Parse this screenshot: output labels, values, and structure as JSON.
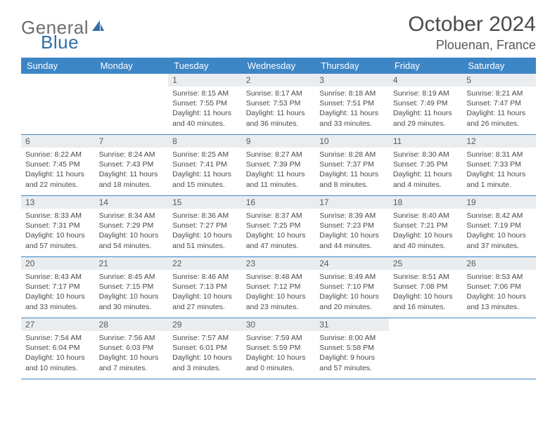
{
  "logo": {
    "general": "General",
    "blue": "Blue"
  },
  "title": "October 2024",
  "location": "Plouenan, France",
  "colors": {
    "header_bg": "#3d86c6",
    "header_fg": "#ffffff",
    "daynum_bg": "#e9edf0",
    "row_border": "#3d86c6",
    "logo_blue": "#2f6fa7",
    "logo_gray": "#6d6d6d"
  },
  "daysOfWeek": [
    "Sunday",
    "Monday",
    "Tuesday",
    "Wednesday",
    "Thursday",
    "Friday",
    "Saturday"
  ],
  "weeks": [
    [
      null,
      null,
      {
        "n": "1",
        "sr": "8:15 AM",
        "ss": "7:55 PM",
        "dl": "11 hours and 40 minutes."
      },
      {
        "n": "2",
        "sr": "8:17 AM",
        "ss": "7:53 PM",
        "dl": "11 hours and 36 minutes."
      },
      {
        "n": "3",
        "sr": "8:18 AM",
        "ss": "7:51 PM",
        "dl": "11 hours and 33 minutes."
      },
      {
        "n": "4",
        "sr": "8:19 AM",
        "ss": "7:49 PM",
        "dl": "11 hours and 29 minutes."
      },
      {
        "n": "5",
        "sr": "8:21 AM",
        "ss": "7:47 PM",
        "dl": "11 hours and 26 minutes."
      }
    ],
    [
      {
        "n": "6",
        "sr": "8:22 AM",
        "ss": "7:45 PM",
        "dl": "11 hours and 22 minutes."
      },
      {
        "n": "7",
        "sr": "8:24 AM",
        "ss": "7:43 PM",
        "dl": "11 hours and 18 minutes."
      },
      {
        "n": "8",
        "sr": "8:25 AM",
        "ss": "7:41 PM",
        "dl": "11 hours and 15 minutes."
      },
      {
        "n": "9",
        "sr": "8:27 AM",
        "ss": "7:39 PM",
        "dl": "11 hours and 11 minutes."
      },
      {
        "n": "10",
        "sr": "8:28 AM",
        "ss": "7:37 PM",
        "dl": "11 hours and 8 minutes."
      },
      {
        "n": "11",
        "sr": "8:30 AM",
        "ss": "7:35 PM",
        "dl": "11 hours and 4 minutes."
      },
      {
        "n": "12",
        "sr": "8:31 AM",
        "ss": "7:33 PM",
        "dl": "11 hours and 1 minute."
      }
    ],
    [
      {
        "n": "13",
        "sr": "8:33 AM",
        "ss": "7:31 PM",
        "dl": "10 hours and 57 minutes."
      },
      {
        "n": "14",
        "sr": "8:34 AM",
        "ss": "7:29 PM",
        "dl": "10 hours and 54 minutes."
      },
      {
        "n": "15",
        "sr": "8:36 AM",
        "ss": "7:27 PM",
        "dl": "10 hours and 51 minutes."
      },
      {
        "n": "16",
        "sr": "8:37 AM",
        "ss": "7:25 PM",
        "dl": "10 hours and 47 minutes."
      },
      {
        "n": "17",
        "sr": "8:39 AM",
        "ss": "7:23 PM",
        "dl": "10 hours and 44 minutes."
      },
      {
        "n": "18",
        "sr": "8:40 AM",
        "ss": "7:21 PM",
        "dl": "10 hours and 40 minutes."
      },
      {
        "n": "19",
        "sr": "8:42 AM",
        "ss": "7:19 PM",
        "dl": "10 hours and 37 minutes."
      }
    ],
    [
      {
        "n": "20",
        "sr": "8:43 AM",
        "ss": "7:17 PM",
        "dl": "10 hours and 33 minutes."
      },
      {
        "n": "21",
        "sr": "8:45 AM",
        "ss": "7:15 PM",
        "dl": "10 hours and 30 minutes."
      },
      {
        "n": "22",
        "sr": "8:46 AM",
        "ss": "7:13 PM",
        "dl": "10 hours and 27 minutes."
      },
      {
        "n": "23",
        "sr": "8:48 AM",
        "ss": "7:12 PM",
        "dl": "10 hours and 23 minutes."
      },
      {
        "n": "24",
        "sr": "8:49 AM",
        "ss": "7:10 PM",
        "dl": "10 hours and 20 minutes."
      },
      {
        "n": "25",
        "sr": "8:51 AM",
        "ss": "7:08 PM",
        "dl": "10 hours and 16 minutes."
      },
      {
        "n": "26",
        "sr": "8:53 AM",
        "ss": "7:06 PM",
        "dl": "10 hours and 13 minutes."
      }
    ],
    [
      {
        "n": "27",
        "sr": "7:54 AM",
        "ss": "6:04 PM",
        "dl": "10 hours and 10 minutes."
      },
      {
        "n": "28",
        "sr": "7:56 AM",
        "ss": "6:03 PM",
        "dl": "10 hours and 7 minutes."
      },
      {
        "n": "29",
        "sr": "7:57 AM",
        "ss": "6:01 PM",
        "dl": "10 hours and 3 minutes."
      },
      {
        "n": "30",
        "sr": "7:59 AM",
        "ss": "5:59 PM",
        "dl": "10 hours and 0 minutes."
      },
      {
        "n": "31",
        "sr": "8:00 AM",
        "ss": "5:58 PM",
        "dl": "9 hours and 57 minutes."
      },
      null,
      null
    ]
  ],
  "labels": {
    "sunrise": "Sunrise: ",
    "sunset": "Sunset: ",
    "daylight": "Daylight: "
  }
}
